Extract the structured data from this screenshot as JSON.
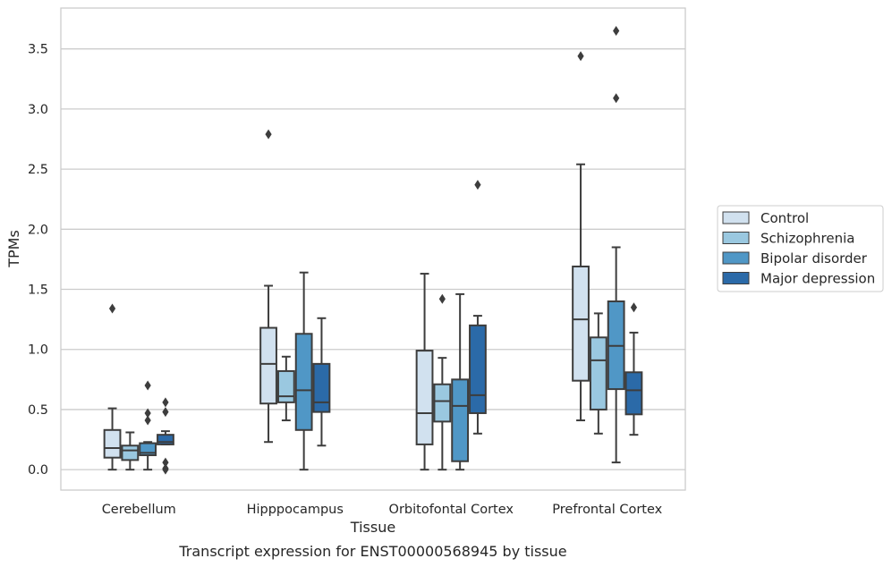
{
  "caption": "Transcript expression for ENST00000568945 by tissue",
  "chart_data": {
    "type": "box",
    "xlabel": "Tissue",
    "ylabel": "TPMs",
    "ylim": [
      -0.17,
      3.84
    ],
    "yticks": [
      0.0,
      0.5,
      1.0,
      1.5,
      2.0,
      2.5,
      3.0,
      3.5
    ],
    "ytick_labels": [
      "0.0",
      "0.5",
      "1.0",
      "1.5",
      "2.0",
      "2.5",
      "3.0",
      "3.5"
    ],
    "grid": "horizontal",
    "legend_position": "right",
    "categories": [
      "Cerebellum",
      "Hipppocampus",
      "Orbitofontal Cortex",
      "Prefrontal Cortex"
    ],
    "series": [
      {
        "name": "Control",
        "color": "#d1e1ef",
        "boxes": [
          {
            "whisker_low": 0.0,
            "q1": 0.1,
            "median": 0.18,
            "q3": 0.33,
            "whisker_high": 0.51,
            "outliers": [
              1.34
            ]
          },
          {
            "whisker_low": 0.23,
            "q1": 0.55,
            "median": 0.88,
            "q3": 1.18,
            "whisker_high": 1.53,
            "outliers": [
              2.79
            ]
          },
          {
            "whisker_low": 0.0,
            "q1": 0.21,
            "median": 0.47,
            "q3": 0.99,
            "whisker_high": 1.63,
            "outliers": []
          },
          {
            "whisker_low": 0.41,
            "q1": 0.74,
            "median": 1.25,
            "q3": 1.69,
            "whisker_high": 2.54,
            "outliers": [
              3.44
            ]
          }
        ]
      },
      {
        "name": "Schizophrenia",
        "color": "#9ac8e0",
        "boxes": [
          {
            "whisker_low": 0.0,
            "q1": 0.08,
            "median": 0.16,
            "q3": 0.2,
            "whisker_high": 0.31,
            "outliers": []
          },
          {
            "whisker_low": 0.41,
            "q1": 0.56,
            "median": 0.61,
            "q3": 0.82,
            "whisker_high": 0.94,
            "outliers": []
          },
          {
            "whisker_low": 0.0,
            "q1": 0.4,
            "median": 0.57,
            "q3": 0.71,
            "whisker_high": 0.93,
            "outliers": [
              1.42
            ]
          },
          {
            "whisker_low": 0.3,
            "q1": 0.5,
            "median": 0.91,
            "q3": 1.1,
            "whisker_high": 1.3,
            "outliers": []
          }
        ]
      },
      {
        "name": "Bipolar disorder",
        "color": "#5097c6",
        "boxes": [
          {
            "whisker_low": 0.0,
            "q1": 0.12,
            "median": 0.14,
            "q3": 0.22,
            "whisker_high": 0.23,
            "outliers": [
              0.7,
              0.47,
              0.41
            ]
          },
          {
            "whisker_low": 0.0,
            "q1": 0.33,
            "median": 0.66,
            "q3": 1.13,
            "whisker_high": 1.64,
            "outliers": []
          },
          {
            "whisker_low": 0.0,
            "q1": 0.07,
            "median": 0.53,
            "q3": 0.75,
            "whisker_high": 1.46,
            "outliers": []
          },
          {
            "whisker_low": 0.06,
            "q1": 0.67,
            "median": 1.03,
            "q3": 1.4,
            "whisker_high": 1.85,
            "outliers": [
              3.65,
              3.09
            ]
          }
        ]
      },
      {
        "name": "Major depression",
        "color": "#2b6aa8",
        "boxes": [
          {
            "whisker_low": 0.21,
            "q1": 0.21,
            "median": 0.23,
            "q3": 0.29,
            "whisker_high": 0.32,
            "outliers": [
              0.56,
              0.48,
              0.06,
              0.01,
              0.0
            ]
          },
          {
            "whisker_low": 0.2,
            "q1": 0.48,
            "median": 0.56,
            "q3": 0.88,
            "whisker_high": 1.26,
            "outliers": []
          },
          {
            "whisker_low": 0.3,
            "q1": 0.47,
            "median": 0.62,
            "q3": 1.2,
            "whisker_high": 1.28,
            "outliers": [
              2.37
            ]
          },
          {
            "whisker_low": 0.29,
            "q1": 0.46,
            "median": 0.66,
            "q3": 0.81,
            "whisker_high": 1.14,
            "outliers": [
              1.35
            ]
          }
        ]
      }
    ]
  }
}
